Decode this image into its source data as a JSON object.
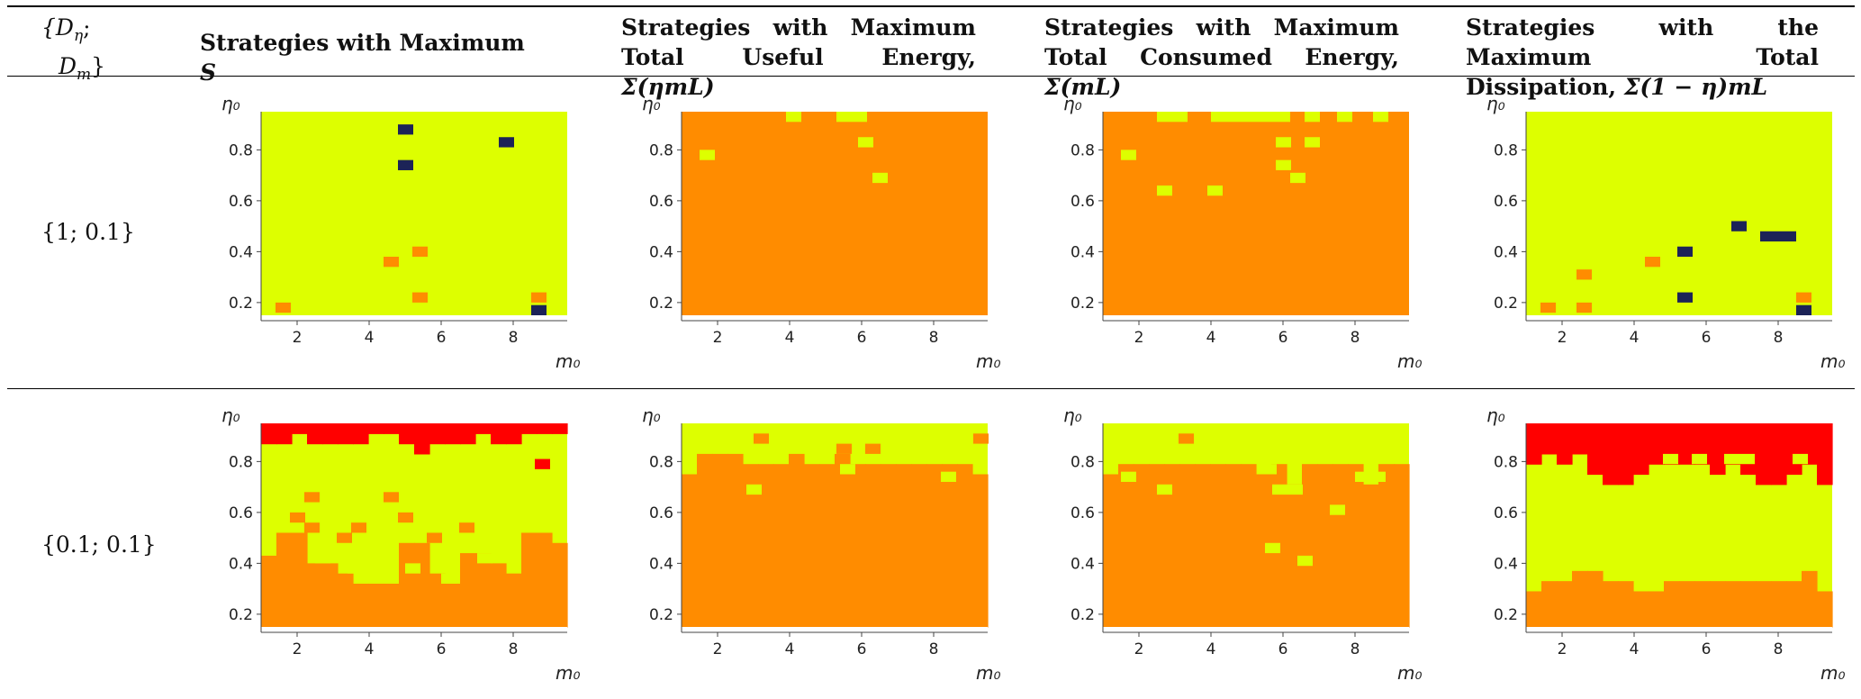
{
  "table": {
    "header": {
      "param_col": {
        "line1": "{D",
        "sub1": "η",
        "semi": ";",
        "line2": "D",
        "sub2": "m",
        "close": "}"
      },
      "cols": [
        {
          "text": "Strategies with Maximum ",
          "math": "S"
        },
        {
          "text": "Strategies with Maximum Total Useful Energy, ",
          "math": "Σ(ηmL)"
        },
        {
          "text": "Strategies with Maximum Total Consumed Energy, ",
          "math": "Σ(mL)"
        },
        {
          "text": "Strategies with the Maximum Total Dissipation, ",
          "math": "Σ(1 − η)mL"
        }
      ]
    },
    "rows": [
      {
        "label": "{1; 0.1}"
      },
      {
        "label": "{0.1; 0.1}"
      }
    ]
  },
  "colors": {
    "yellow": "#ddff00",
    "orange": "#ff8c00",
    "red": "#ff0000",
    "navy": "#1c2357"
  },
  "chart_data": [
    {
      "type": "heatmap",
      "row": 0,
      "col": 0,
      "xlabel": "m₀",
      "ylabel": "η₀",
      "x_ticks": [
        2,
        4,
        6,
        8
      ],
      "y_ticks": [
        0.2,
        0.4,
        0.6,
        0.8
      ],
      "xlim": [
        1,
        9.5
      ],
      "ylim": [
        0.15,
        0.95
      ],
      "background": "yellow",
      "cell_w": 0.425,
      "cell_h": 0.04,
      "cells": [
        {
          "x": 4.8,
          "y": 0.86,
          "color": "navy"
        },
        {
          "x": 4.8,
          "y": 0.72,
          "color": "navy"
        },
        {
          "x": 7.6,
          "y": 0.81,
          "color": "navy"
        },
        {
          "x": 8.5,
          "y": 0.15,
          "color": "navy"
        },
        {
          "x": 4.4,
          "y": 0.34,
          "color": "orange"
        },
        {
          "x": 5.2,
          "y": 0.38,
          "color": "orange"
        },
        {
          "x": 5.2,
          "y": 0.2,
          "color": "orange"
        },
        {
          "x": 1.4,
          "y": 0.16,
          "color": "orange"
        },
        {
          "x": 8.5,
          "y": 0.2,
          "color": "orange"
        }
      ]
    },
    {
      "type": "heatmap",
      "row": 0,
      "col": 1,
      "xlabel": "m₀",
      "ylabel": "η₀",
      "x_ticks": [
        2,
        4,
        6,
        8
      ],
      "y_ticks": [
        0.2,
        0.4,
        0.6,
        0.8
      ],
      "xlim": [
        1,
        9.5
      ],
      "ylim": [
        0.15,
        0.95
      ],
      "background": "orange",
      "cell_w": 0.425,
      "cell_h": 0.04,
      "cells": [
        {
          "x": 3.9,
          "y": 0.91,
          "color": "yellow"
        },
        {
          "x": 5.3,
          "y": 0.91,
          "color": "yellow",
          "w": 0.85
        },
        {
          "x": 1.5,
          "y": 0.76,
          "color": "yellow"
        },
        {
          "x": 5.9,
          "y": 0.81,
          "color": "yellow"
        },
        {
          "x": 6.3,
          "y": 0.67,
          "color": "yellow"
        }
      ]
    },
    {
      "type": "heatmap",
      "row": 0,
      "col": 2,
      "xlabel": "m₀",
      "ylabel": "η₀",
      "x_ticks": [
        2,
        4,
        6,
        8
      ],
      "y_ticks": [
        0.2,
        0.4,
        0.6,
        0.8
      ],
      "xlim": [
        1,
        9.5
      ],
      "ylim": [
        0.15,
        0.95
      ],
      "background": "orange",
      "cell_w": 0.425,
      "cell_h": 0.04,
      "cells": [
        {
          "x": 2.5,
          "y": 0.91,
          "color": "yellow",
          "w": 0.85
        },
        {
          "x": 4.0,
          "y": 0.91,
          "color": "yellow",
          "w": 2.2
        },
        {
          "x": 6.6,
          "y": 0.91,
          "color": "yellow"
        },
        {
          "x": 7.5,
          "y": 0.91,
          "color": "yellow"
        },
        {
          "x": 8.5,
          "y": 0.91,
          "color": "yellow"
        },
        {
          "x": 1.5,
          "y": 0.76,
          "color": "yellow"
        },
        {
          "x": 2.5,
          "y": 0.62,
          "color": "yellow"
        },
        {
          "x": 3.9,
          "y": 0.62,
          "color": "yellow"
        },
        {
          "x": 5.8,
          "y": 0.81,
          "color": "yellow"
        },
        {
          "x": 6.6,
          "y": 0.81,
          "color": "yellow"
        },
        {
          "x": 5.8,
          "y": 0.72,
          "color": "yellow"
        },
        {
          "x": 6.2,
          "y": 0.67,
          "color": "yellow"
        }
      ]
    },
    {
      "type": "heatmap",
      "row": 0,
      "col": 3,
      "xlabel": "m₀",
      "ylabel": "η₀",
      "x_ticks": [
        2,
        4,
        6,
        8
      ],
      "y_ticks": [
        0.2,
        0.4,
        0.6,
        0.8
      ],
      "xlim": [
        1,
        9.5
      ],
      "ylim": [
        0.15,
        0.95
      ],
      "background": "yellow",
      "cell_w": 0.425,
      "cell_h": 0.04,
      "cells": [
        {
          "x": 6.7,
          "y": 0.48,
          "color": "navy"
        },
        {
          "x": 7.5,
          "y": 0.44,
          "color": "navy",
          "w": 1.0
        },
        {
          "x": 5.2,
          "y": 0.38,
          "color": "navy"
        },
        {
          "x": 5.2,
          "y": 0.2,
          "color": "navy"
        },
        {
          "x": 8.5,
          "y": 0.15,
          "color": "navy"
        },
        {
          "x": 2.4,
          "y": 0.29,
          "color": "orange"
        },
        {
          "x": 4.3,
          "y": 0.34,
          "color": "orange"
        },
        {
          "x": 1.4,
          "y": 0.16,
          "color": "orange"
        },
        {
          "x": 2.4,
          "y": 0.16,
          "color": "orange"
        },
        {
          "x": 8.5,
          "y": 0.2,
          "color": "orange"
        }
      ]
    },
    {
      "type": "heatmap",
      "row": 1,
      "col": 0,
      "xlabel": "m₀",
      "ylabel": "η₀",
      "x_ticks": [
        2,
        4,
        6,
        8
      ],
      "y_ticks": [
        0.2,
        0.4,
        0.6,
        0.8
      ],
      "xlim": [
        1,
        9.5
      ],
      "ylim": [
        0.15,
        0.95
      ],
      "background": "yellow",
      "cell_w": 0.425,
      "cell_h": 0.04,
      "profiles": [
        {
          "color": "orange",
          "from": "bottom",
          "top": [
            0.43,
            0.52,
            0.52,
            0.4,
            0.4,
            0.36,
            0.32,
            0.32,
            0.32,
            0.48,
            0.48,
            0.36,
            0.32,
            0.44,
            0.44,
            0.4,
            0.36,
            0.52,
            0.52,
            0.48
          ]
        },
        {
          "color": "red",
          "from": "top",
          "bottom": [
            0.87,
            0.87,
            0.91,
            0.87,
            0.87,
            0.87,
            0.87,
            0.91,
            0.91,
            0.87,
            0.83,
            0.87,
            0.87,
            0.87,
            0.91,
            0.87,
            0.87,
            0.91,
            0.91,
            0.91
          ]
        }
      ],
      "cells": [
        {
          "x": 1.8,
          "y": 0.56,
          "color": "orange"
        },
        {
          "x": 2.2,
          "y": 0.52,
          "color": "orange"
        },
        {
          "x": 3.1,
          "y": 0.48,
          "color": "orange"
        },
        {
          "x": 3.5,
          "y": 0.52,
          "color": "orange"
        },
        {
          "x": 2.2,
          "y": 0.64,
          "color": "orange"
        },
        {
          "x": 4.4,
          "y": 0.64,
          "color": "orange"
        },
        {
          "x": 4.8,
          "y": 0.56,
          "color": "orange"
        },
        {
          "x": 5.6,
          "y": 0.48,
          "color": "orange"
        },
        {
          "x": 6.5,
          "y": 0.52,
          "color": "orange"
        },
        {
          "x": 8.6,
          "y": 0.77,
          "color": "red"
        },
        {
          "x": 2.5,
          "y": 0.4,
          "color": "yellow"
        },
        {
          "x": 3.4,
          "y": 0.36,
          "color": "yellow"
        },
        {
          "x": 5.0,
          "y": 0.36,
          "color": "yellow"
        },
        {
          "x": 6.0,
          "y": 0.32,
          "color": "yellow"
        },
        {
          "x": 7.0,
          "y": 0.4,
          "color": "yellow"
        }
      ]
    },
    {
      "type": "heatmap",
      "row": 1,
      "col": 1,
      "xlabel": "m₀",
      "ylabel": "η₀",
      "x_ticks": [
        2,
        4,
        6,
        8
      ],
      "y_ticks": [
        0.2,
        0.4,
        0.6,
        0.8
      ],
      "xlim": [
        1,
        9.5
      ],
      "ylim": [
        0.15,
        0.95
      ],
      "background": "yellow",
      "cell_w": 0.425,
      "cell_h": 0.04,
      "profiles": [
        {
          "color": "orange",
          "from": "bottom",
          "top": [
            0.75,
            0.83,
            0.83,
            0.83,
            0.79,
            0.79,
            0.79,
            0.83,
            0.79,
            0.79,
            0.83,
            0.79,
            0.79,
            0.79,
            0.79,
            0.79,
            0.79,
            0.79,
            0.79,
            0.75
          ]
        }
      ],
      "cells": [
        {
          "x": 2.8,
          "y": 0.67,
          "color": "yellow"
        },
        {
          "x": 3.0,
          "y": 0.87,
          "color": "orange"
        },
        {
          "x": 5.3,
          "y": 0.83,
          "color": "orange"
        },
        {
          "x": 6.1,
          "y": 0.83,
          "color": "orange"
        },
        {
          "x": 5.4,
          "y": 0.75,
          "color": "yellow"
        },
        {
          "x": 8.2,
          "y": 0.72,
          "color": "yellow"
        },
        {
          "x": 9.1,
          "y": 0.87,
          "color": "orange"
        }
      ]
    },
    {
      "type": "heatmap",
      "row": 1,
      "col": 2,
      "xlabel": "m₀",
      "ylabel": "η₀",
      "x_ticks": [
        2,
        4,
        6,
        8
      ],
      "y_ticks": [
        0.2,
        0.4,
        0.6,
        0.8
      ],
      "xlim": [
        1,
        9.5
      ],
      "ylim": [
        0.15,
        0.95
      ],
      "background": "yellow",
      "cell_w": 0.425,
      "cell_h": 0.04,
      "profiles": [
        {
          "color": "orange",
          "from": "bottom",
          "top": [
            0.75,
            0.79,
            0.79,
            0.79,
            0.79,
            0.79,
            0.79,
            0.79,
            0.79,
            0.79,
            0.75,
            0.79,
            0.71,
            0.79,
            0.79,
            0.79,
            0.79,
            0.71,
            0.79,
            0.79
          ]
        }
      ],
      "cells": [
        {
          "x": 1.5,
          "y": 0.72,
          "color": "yellow"
        },
        {
          "x": 2.5,
          "y": 0.67,
          "color": "yellow"
        },
        {
          "x": 3.1,
          "y": 0.87,
          "color": "orange"
        },
        {
          "x": 5.4,
          "y": 0.75,
          "color": "yellow"
        },
        {
          "x": 5.7,
          "y": 0.67,
          "color": "yellow",
          "w": 0.85
        },
        {
          "x": 7.3,
          "y": 0.59,
          "color": "yellow"
        },
        {
          "x": 8.0,
          "y": 0.72,
          "color": "yellow",
          "w": 0.85
        },
        {
          "x": 5.5,
          "y": 0.44,
          "color": "yellow"
        },
        {
          "x": 6.4,
          "y": 0.39,
          "color": "yellow"
        }
      ]
    },
    {
      "type": "heatmap",
      "row": 1,
      "col": 3,
      "xlabel": "m₀",
      "ylabel": "η₀",
      "x_ticks": [
        2,
        4,
        6,
        8
      ],
      "y_ticks": [
        0.2,
        0.4,
        0.6,
        0.8
      ],
      "xlim": [
        1,
        9.5
      ],
      "ylim": [
        0.15,
        0.95
      ],
      "background": "yellow",
      "cell_w": 0.425,
      "cell_h": 0.04,
      "profiles": [
        {
          "color": "orange",
          "from": "bottom",
          "top": [
            0.29,
            0.33,
            0.33,
            0.37,
            0.37,
            0.33,
            0.33,
            0.29,
            0.29,
            0.33,
            0.33,
            0.33,
            0.33,
            0.33,
            0.33,
            0.33,
            0.33,
            0.33,
            0.37,
            0.29
          ]
        },
        {
          "color": "red",
          "from": "top",
          "bottom": [
            0.79,
            0.83,
            0.79,
            0.83,
            0.75,
            0.71,
            0.71,
            0.75,
            0.79,
            0.79,
            0.79,
            0.79,
            0.75,
            0.79,
            0.75,
            0.71,
            0.71,
            0.75,
            0.79,
            0.71
          ]
        }
      ],
      "cells": [
        {
          "x": 4.8,
          "y": 0.79,
          "color": "yellow"
        },
        {
          "x": 5.6,
          "y": 0.79,
          "color": "yellow"
        },
        {
          "x": 6.5,
          "y": 0.79,
          "color": "yellow",
          "w": 0.85
        },
        {
          "x": 8.4,
          "y": 0.79,
          "color": "yellow"
        }
      ]
    }
  ]
}
